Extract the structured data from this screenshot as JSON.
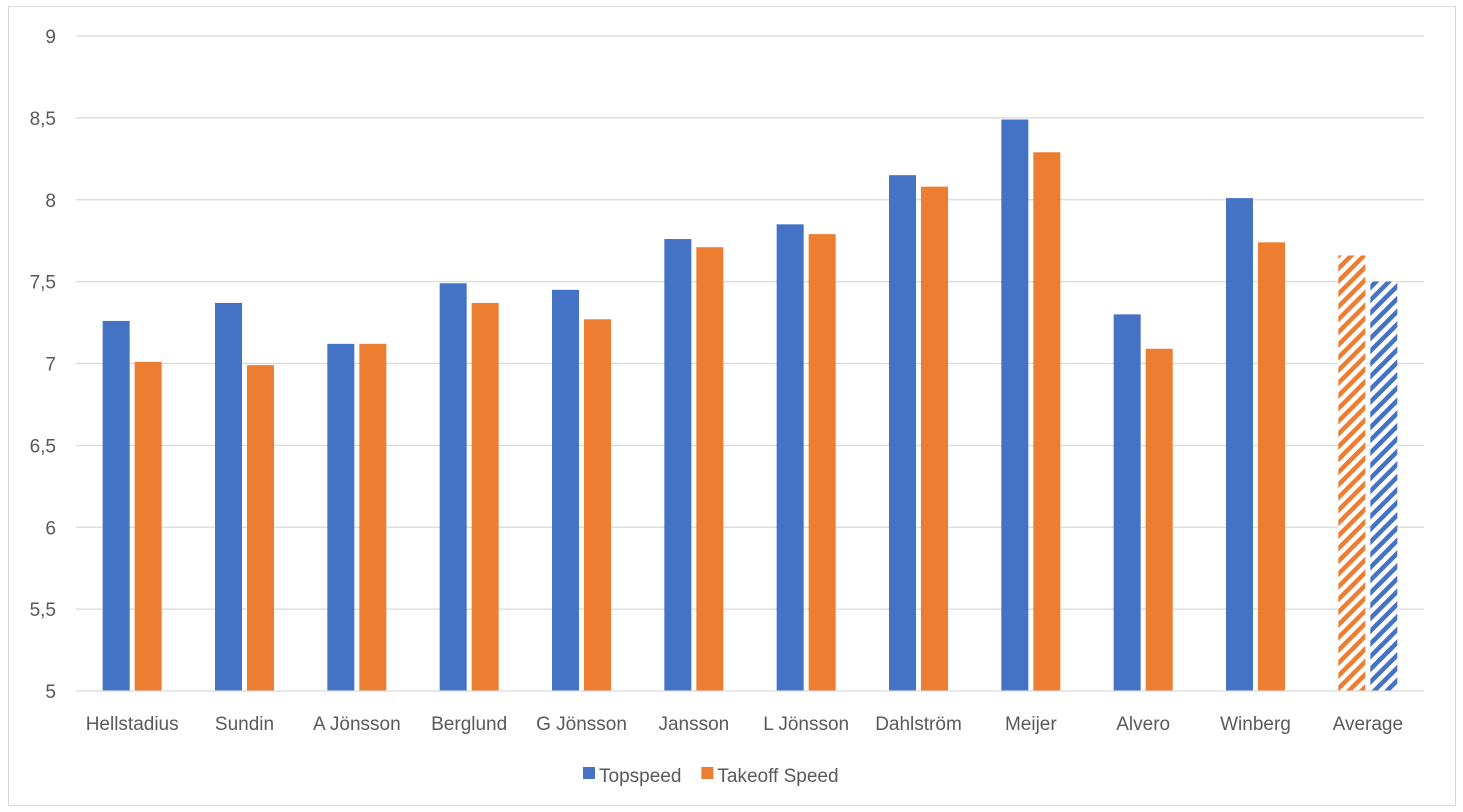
{
  "chart_data": {
    "type": "bar",
    "categories": [
      "Hellstadius",
      "Sundin",
      "A Jönsson",
      "Berglund",
      "G Jönsson",
      "Jansson",
      "L Jönsson",
      "Dahlström",
      "Meijer",
      "Alvero",
      "Winberg",
      "Average"
    ],
    "series": [
      {
        "name": "Topspeed",
        "color": "#4472c4",
        "values": [
          7.26,
          7.37,
          7.12,
          7.49,
          7.45,
          7.76,
          7.85,
          8.15,
          8.49,
          7.3,
          8.01,
          7.5
        ]
      },
      {
        "name": "Takeoff Speed",
        "color": "#ed7d31",
        "values": [
          7.01,
          6.99,
          7.12,
          7.37,
          7.27,
          7.71,
          7.79,
          8.08,
          8.29,
          7.09,
          7.74,
          7.66
        ]
      }
    ],
    "average_category_style": "hatched",
    "average_series_order": [
      "Takeoff Speed",
      "Topspeed"
    ],
    "yticks": [
      "5",
      "5,5",
      "6",
      "6,5",
      "7",
      "7,5",
      "8",
      "8,5",
      "9"
    ],
    "ylim": [
      5,
      9
    ],
    "title": "",
    "xlabel": "",
    "ylabel": "",
    "grid": true,
    "legend_position": "bottom"
  }
}
